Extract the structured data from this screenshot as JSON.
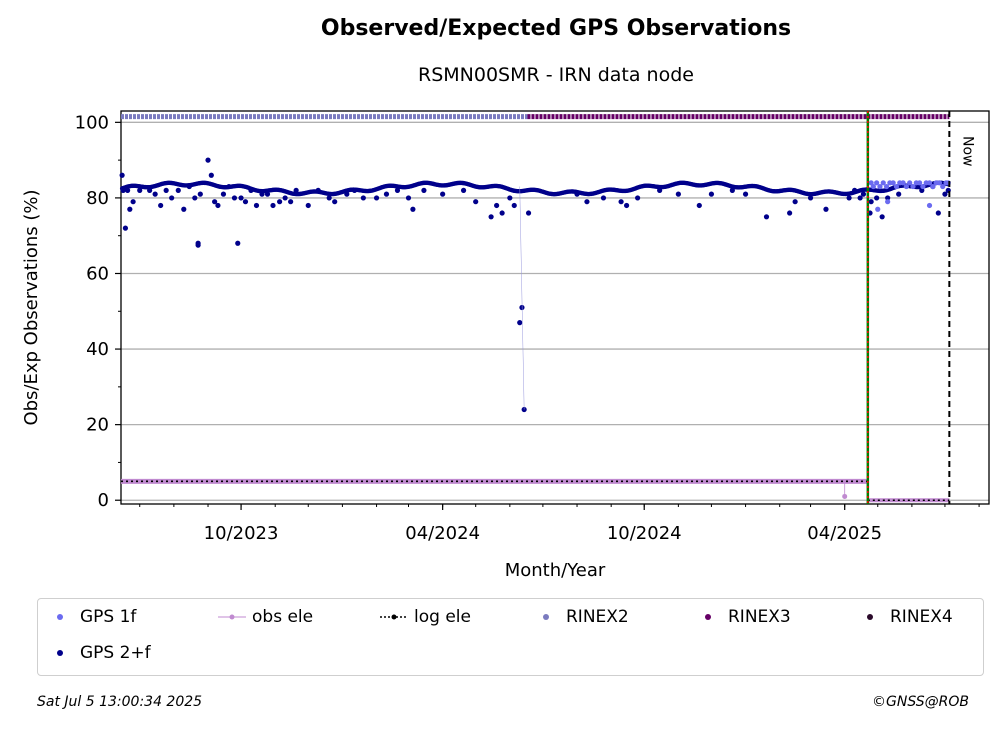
{
  "chart_data": {
    "type": "scatter",
    "title": "Observed/Expected GPS Observations",
    "subtitle": "RSMN00SMR - IRN data node",
    "xlabel": "Month/Year",
    "ylabel": "Obs/Exp Observations (%)",
    "xlim": [
      "2023-06-14",
      "2025-08-10"
    ],
    "ylim": [
      -1,
      103
    ],
    "grid": "horizontal",
    "x_ticks": [
      {
        "date": "2023-10-01",
        "label": "10/2023"
      },
      {
        "date": "2024-04-01",
        "label": "04/2024"
      },
      {
        "date": "2024-10-01",
        "label": "10/2024"
      },
      {
        "date": "2025-04-01",
        "label": "04/2025"
      }
    ],
    "y_ticks": [
      0,
      20,
      40,
      60,
      80,
      100
    ],
    "series": [
      {
        "name": "GPS 1f",
        "color": "#6b6bf0",
        "points": [
          [
            "2025-04-25",
            84
          ],
          [
            "2025-04-27",
            83
          ],
          [
            "2025-04-30",
            84
          ],
          [
            "2025-05-03",
            83
          ],
          [
            "2025-05-06",
            84
          ],
          [
            "2025-05-09",
            83
          ],
          [
            "2025-05-12",
            84
          ],
          [
            "2025-05-15",
            84
          ],
          [
            "2025-05-18",
            83
          ],
          [
            "2025-05-21",
            84
          ],
          [
            "2025-05-24",
            84
          ],
          [
            "2025-05-27",
            83
          ],
          [
            "2025-05-30",
            84
          ],
          [
            "2025-06-02",
            83
          ],
          [
            "2025-06-05",
            84
          ],
          [
            "2025-06-08",
            84
          ],
          [
            "2025-06-11",
            83
          ],
          [
            "2025-06-14",
            84
          ],
          [
            "2025-06-17",
            84
          ],
          [
            "2025-06-20",
            83
          ],
          [
            "2025-06-23",
            84
          ],
          [
            "2025-06-26",
            84
          ],
          [
            "2025-06-29",
            83
          ],
          [
            "2025-07-02",
            84
          ],
          [
            "2025-07-04",
            84
          ],
          [
            "2025-05-01",
            77
          ],
          [
            "2025-05-10",
            79
          ],
          [
            "2025-06-17",
            78
          ]
        ]
      },
      {
        "name": "GPS 2+f",
        "color": "#00008b",
        "points": [
          [
            "2023-06-15",
            86
          ],
          [
            "2023-06-16",
            82
          ],
          [
            "2023-06-18",
            72
          ],
          [
            "2023-06-20",
            82
          ],
          [
            "2023-06-22",
            77
          ],
          [
            "2023-06-25",
            79
          ],
          [
            "2023-07-01",
            82
          ],
          [
            "2023-07-10",
            82
          ],
          [
            "2023-07-15",
            81
          ],
          [
            "2023-07-20",
            78
          ],
          [
            "2023-07-25",
            82
          ],
          [
            "2023-07-30",
            80
          ],
          [
            "2023-08-05",
            82
          ],
          [
            "2023-08-10",
            77
          ],
          [
            "2023-08-15",
            83
          ],
          [
            "2023-08-20",
            80
          ],
          [
            "2023-08-23",
            68
          ],
          [
            "2023-08-23",
            67.5
          ],
          [
            "2023-08-25",
            81
          ],
          [
            "2023-09-01",
            90
          ],
          [
            "2023-09-04",
            86
          ],
          [
            "2023-09-07",
            79
          ],
          [
            "2023-09-10",
            78
          ],
          [
            "2023-09-15",
            81
          ],
          [
            "2023-09-20",
            83
          ],
          [
            "2023-09-25",
            80
          ],
          [
            "2023-09-28",
            68
          ],
          [
            "2023-10-01",
            80
          ],
          [
            "2023-10-05",
            79
          ],
          [
            "2023-10-10",
            82
          ],
          [
            "2023-10-15",
            78
          ],
          [
            "2023-10-20",
            81
          ],
          [
            "2023-10-25",
            81
          ],
          [
            "2023-10-30",
            78
          ],
          [
            "2023-11-05",
            79
          ],
          [
            "2023-11-10",
            80
          ],
          [
            "2023-11-15",
            79
          ],
          [
            "2023-11-20",
            82
          ],
          [
            "2023-12-01",
            78
          ],
          [
            "2023-12-10",
            82
          ],
          [
            "2023-12-20",
            80
          ],
          [
            "2023-12-25",
            79
          ],
          [
            "2024-01-05",
            81
          ],
          [
            "2024-01-12",
            82
          ],
          [
            "2024-01-20",
            80
          ],
          [
            "2024-02-01",
            80
          ],
          [
            "2024-02-10",
            81
          ],
          [
            "2024-02-20",
            82
          ],
          [
            "2024-03-01",
            80
          ],
          [
            "2024-03-05",
            77
          ],
          [
            "2024-03-15",
            82
          ],
          [
            "2024-04-01",
            81
          ],
          [
            "2024-04-20",
            82
          ],
          [
            "2024-05-01",
            79
          ],
          [
            "2024-05-15",
            75
          ],
          [
            "2024-05-20",
            78
          ],
          [
            "2024-05-25",
            76
          ],
          [
            "2024-06-01",
            80
          ],
          [
            "2024-06-05",
            78
          ],
          [
            "2024-06-10",
            47
          ],
          [
            "2024-06-12",
            51
          ],
          [
            "2024-06-14",
            24
          ],
          [
            "2024-06-18",
            76
          ],
          [
            "2024-08-01",
            81
          ],
          [
            "2024-08-10",
            79
          ],
          [
            "2024-08-25",
            80
          ],
          [
            "2024-09-10",
            79
          ],
          [
            "2024-09-15",
            78
          ],
          [
            "2024-09-25",
            80
          ],
          [
            "2024-10-15",
            82
          ],
          [
            "2024-11-01",
            81
          ],
          [
            "2024-11-20",
            78
          ],
          [
            "2024-12-01",
            81
          ],
          [
            "2024-12-20",
            82
          ],
          [
            "2025-01-01",
            81
          ],
          [
            "2025-01-20",
            75
          ],
          [
            "2025-02-10",
            76
          ],
          [
            "2025-02-15",
            79
          ],
          [
            "2025-03-01",
            80
          ],
          [
            "2025-03-15",
            77
          ],
          [
            "2025-04-05",
            80
          ],
          [
            "2025-04-10",
            82
          ],
          [
            "2025-04-15",
            80
          ],
          [
            "2025-04-18",
            81
          ],
          [
            "2025-04-24",
            76
          ],
          [
            "2025-04-25",
            79
          ],
          [
            "2025-04-30",
            80
          ],
          [
            "2025-05-05",
            75
          ],
          [
            "2025-05-10",
            80
          ],
          [
            "2025-05-20",
            81
          ],
          [
            "2025-06-10",
            82
          ],
          [
            "2025-06-20",
            83
          ],
          [
            "2025-06-25",
            76
          ],
          [
            "2025-07-01",
            81
          ],
          [
            "2025-07-04",
            82
          ]
        ]
      },
      {
        "name": "obs ele",
        "color": "#c08ad0",
        "points": [
          [
            "2025-04-01",
            1
          ]
        ]
      },
      {
        "name": "log ele",
        "color": "#000000",
        "points": []
      },
      {
        "name": "RINEX2",
        "color": "#7b7bbf",
        "range": [
          "2023-06-14",
          "2024-06-17"
        ],
        "y": 101.5
      },
      {
        "name": "RINEX3",
        "color": "#660066",
        "range": [
          "2024-06-17",
          "2025-07-05"
        ],
        "y": 101.5
      },
      {
        "name": "RINEX4",
        "color": "#2a0a2a",
        "range": [],
        "y": 101.5
      }
    ],
    "annotations": [
      {
        "type": "vline",
        "date": "2025-04-22",
        "style": "green-red-dotted"
      },
      {
        "type": "vline",
        "date": "2025-07-05",
        "style": "black-dashed",
        "label": "Now"
      }
    ]
  },
  "legend": [
    {
      "label": "GPS 1f",
      "color": "#6b6bf0",
      "marker": "dot"
    },
    {
      "label": "obs ele",
      "color": "#c08ad0",
      "marker": "line-dot"
    },
    {
      "label": "log ele",
      "color": "#000000",
      "marker": "dotted-line"
    },
    {
      "label": "RINEX2",
      "color": "#7b7bbf",
      "marker": "dot"
    },
    {
      "label": "RINEX3",
      "color": "#660066",
      "marker": "dot"
    },
    {
      "label": "RINEX4",
      "color": "#2a0a2a",
      "marker": "dot"
    },
    {
      "label": "GPS 2+f",
      "color": "#00008b",
      "marker": "dot"
    }
  ],
  "footer": {
    "timestamp": "Sat Jul  5 13:00:34 2025",
    "credit": "©GNSS@ROB"
  }
}
